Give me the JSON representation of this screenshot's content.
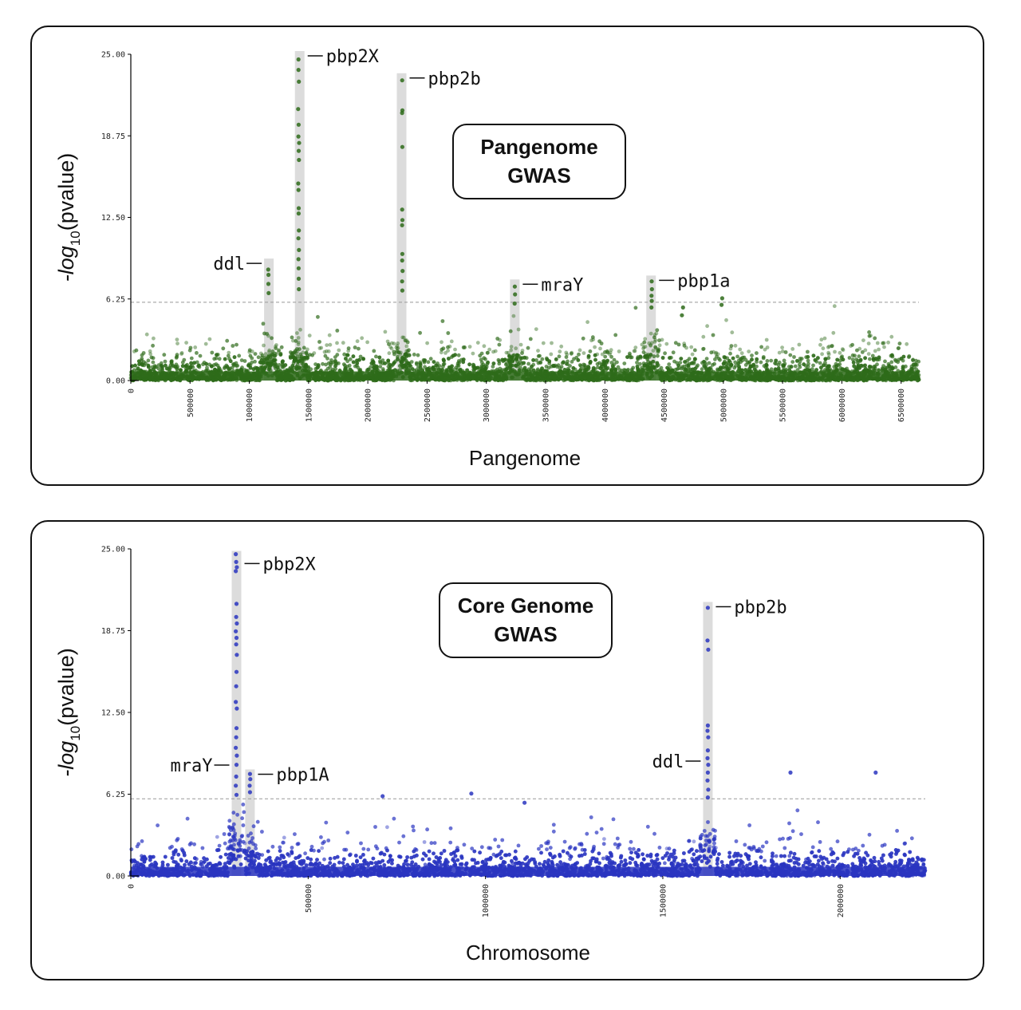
{
  "chart_data": [
    {
      "type": "scatter",
      "title": "Pangenome GWAS",
      "title_lines": [
        "Pangenome",
        "GWAS"
      ],
      "xlabel": "Pangenome",
      "ylabel_parts": [
        "-log",
        "10",
        "(pvalue)"
      ],
      "xlim": [
        0,
        6650000
      ],
      "ylim": [
        0,
        25
      ],
      "yticks": [
        "0.00",
        "6.25",
        "12.50",
        "18.75",
        "25.00"
      ],
      "xticks": [
        "0",
        "500000",
        "1000000",
        "1500000",
        "2000000",
        "2500000",
        "3000000",
        "3500000",
        "4000000",
        "4500000",
        "5000000",
        "5500000",
        "6000000",
        "6500000"
      ],
      "threshold": 6.0,
      "color": "#2e6b1a",
      "grid": false,
      "peaks": [
        {
          "gene": "ddl",
          "x": 1165000,
          "max": 9.1,
          "side": "left"
        },
        {
          "gene": "pbp2X",
          "x": 1425000,
          "max": 25.0,
          "side": "right"
        },
        {
          "gene": "pbp2b",
          "x": 2285000,
          "max": 23.3,
          "side": "right"
        },
        {
          "gene": "mraY",
          "x": 3240000,
          "max": 7.5,
          "side": "right"
        },
        {
          "gene": "pbp1a",
          "x": 4390000,
          "max": 7.8,
          "side": "right"
        }
      ],
      "outliers": [
        [
          1415000,
          24.6
        ],
        [
          1415000,
          23.8
        ],
        [
          1418000,
          22.9
        ],
        [
          1412000,
          20.8
        ],
        [
          1416000,
          19.6
        ],
        [
          1414000,
          18.7
        ],
        [
          1420000,
          18.2
        ],
        [
          1417000,
          17.6
        ],
        [
          1419000,
          16.9
        ],
        [
          1413000,
          15.1
        ],
        [
          1415000,
          14.6
        ],
        [
          1417000,
          13.2
        ],
        [
          1416000,
          12.8
        ],
        [
          1418000,
          11.5
        ],
        [
          1414000,
          10.9
        ],
        [
          1419000,
          10.0
        ],
        [
          1415000,
          9.3
        ],
        [
          1416000,
          8.6
        ],
        [
          1417000,
          7.8
        ],
        [
          1418000,
          7.0
        ],
        [
          2290000,
          23.0
        ],
        [
          2292000,
          20.7
        ],
        [
          2289000,
          20.5
        ],
        [
          2291000,
          17.9
        ],
        [
          2290000,
          13.1
        ],
        [
          2292000,
          12.3
        ],
        [
          2289000,
          11.9
        ],
        [
          2291000,
          9.7
        ],
        [
          2290000,
          9.2
        ],
        [
          2293000,
          8.4
        ],
        [
          2289000,
          7.6
        ],
        [
          2291000,
          6.9
        ],
        [
          1160000,
          8.5
        ],
        [
          1162000,
          8.1
        ],
        [
          1161000,
          7.4
        ],
        [
          1163000,
          6.7
        ],
        [
          3240000,
          7.2
        ],
        [
          3242000,
          6.6
        ],
        [
          3239000,
          5.9
        ],
        [
          4395000,
          7.6
        ],
        [
          4397000,
          7.0
        ],
        [
          4394000,
          6.5
        ],
        [
          4396000,
          6.1
        ],
        [
          4393000,
          5.6
        ],
        [
          4990000,
          6.3
        ],
        [
          4985000,
          5.8
        ],
        [
          4660000,
          5.6
        ],
        [
          4650000,
          5.0
        ]
      ]
    },
    {
      "type": "scatter",
      "title": "Core Genome GWAS",
      "title_lines": [
        "Core Genome",
        "GWAS"
      ],
      "xlabel": "Chromosome",
      "ylabel_parts": [
        "-log",
        "10",
        "(pvalue)"
      ],
      "xlim": [
        0,
        2240000
      ],
      "ylim": [
        0,
        25
      ],
      "yticks": [
        "0.00",
        "6.25",
        "12.50",
        "18.75",
        "25.00"
      ],
      "xticks": [
        "0",
        "500000",
        "1000000",
        "1500000",
        "2000000"
      ],
      "threshold": 5.9,
      "color": "#2a35c0",
      "grid": false,
      "peaks": [
        {
          "gene": "pbp2X",
          "x": 298000,
          "max": 24.6,
          "side": "right",
          "label_y": 24.0
        },
        {
          "gene": "mraY",
          "x": 298000,
          "max": 24.6,
          "side": "left",
          "label_y": 8.6,
          "no_band": true
        },
        {
          "gene": "pbp1A",
          "x": 336000,
          "max": 7.9,
          "side": "right"
        },
        {
          "gene": "pbp2b",
          "x": 1627000,
          "max": 20.7,
          "side": "right"
        },
        {
          "gene": "ddl",
          "x": 1627000,
          "max": 20.7,
          "side": "left",
          "label_y": 8.9,
          "no_band": true
        }
      ],
      "outliers": [
        [
          296000,
          24.6
        ],
        [
          297000,
          24.0
        ],
        [
          299000,
          23.6
        ],
        [
          296000,
          23.3
        ],
        [
          298000,
          20.8
        ],
        [
          297000,
          19.8
        ],
        [
          299000,
          19.3
        ],
        [
          296000,
          18.7
        ],
        [
          298000,
          18.2
        ],
        [
          297000,
          17.7
        ],
        [
          299000,
          16.9
        ],
        [
          298000,
          15.6
        ],
        [
          297000,
          14.5
        ],
        [
          296000,
          13.3
        ],
        [
          299000,
          12.8
        ],
        [
          298000,
          11.3
        ],
        [
          297000,
          10.6
        ],
        [
          296000,
          9.8
        ],
        [
          299000,
          9.2
        ],
        [
          298000,
          8.5
        ],
        [
          297000,
          7.6
        ],
        [
          296000,
          6.9
        ],
        [
          298000,
          6.2
        ],
        [
          336000,
          7.8
        ],
        [
          337000,
          7.4
        ],
        [
          335000,
          6.9
        ],
        [
          336000,
          6.4
        ],
        [
          1627000,
          20.5
        ],
        [
          1626000,
          18.0
        ],
        [
          1628000,
          17.3
        ],
        [
          1627000,
          11.5
        ],
        [
          1626000,
          11.1
        ],
        [
          1628000,
          10.6
        ],
        [
          1627000,
          9.6
        ],
        [
          1626000,
          9.0
        ],
        [
          1628000,
          8.5
        ],
        [
          1627000,
          7.9
        ],
        [
          1626000,
          7.3
        ],
        [
          1628000,
          6.6
        ],
        [
          1627000,
          6.0
        ],
        [
          1860000,
          7.9
        ],
        [
          2100000,
          7.9
        ],
        [
          710000,
          6.1
        ],
        [
          960000,
          6.3
        ],
        [
          1110000,
          5.6
        ]
      ]
    }
  ]
}
